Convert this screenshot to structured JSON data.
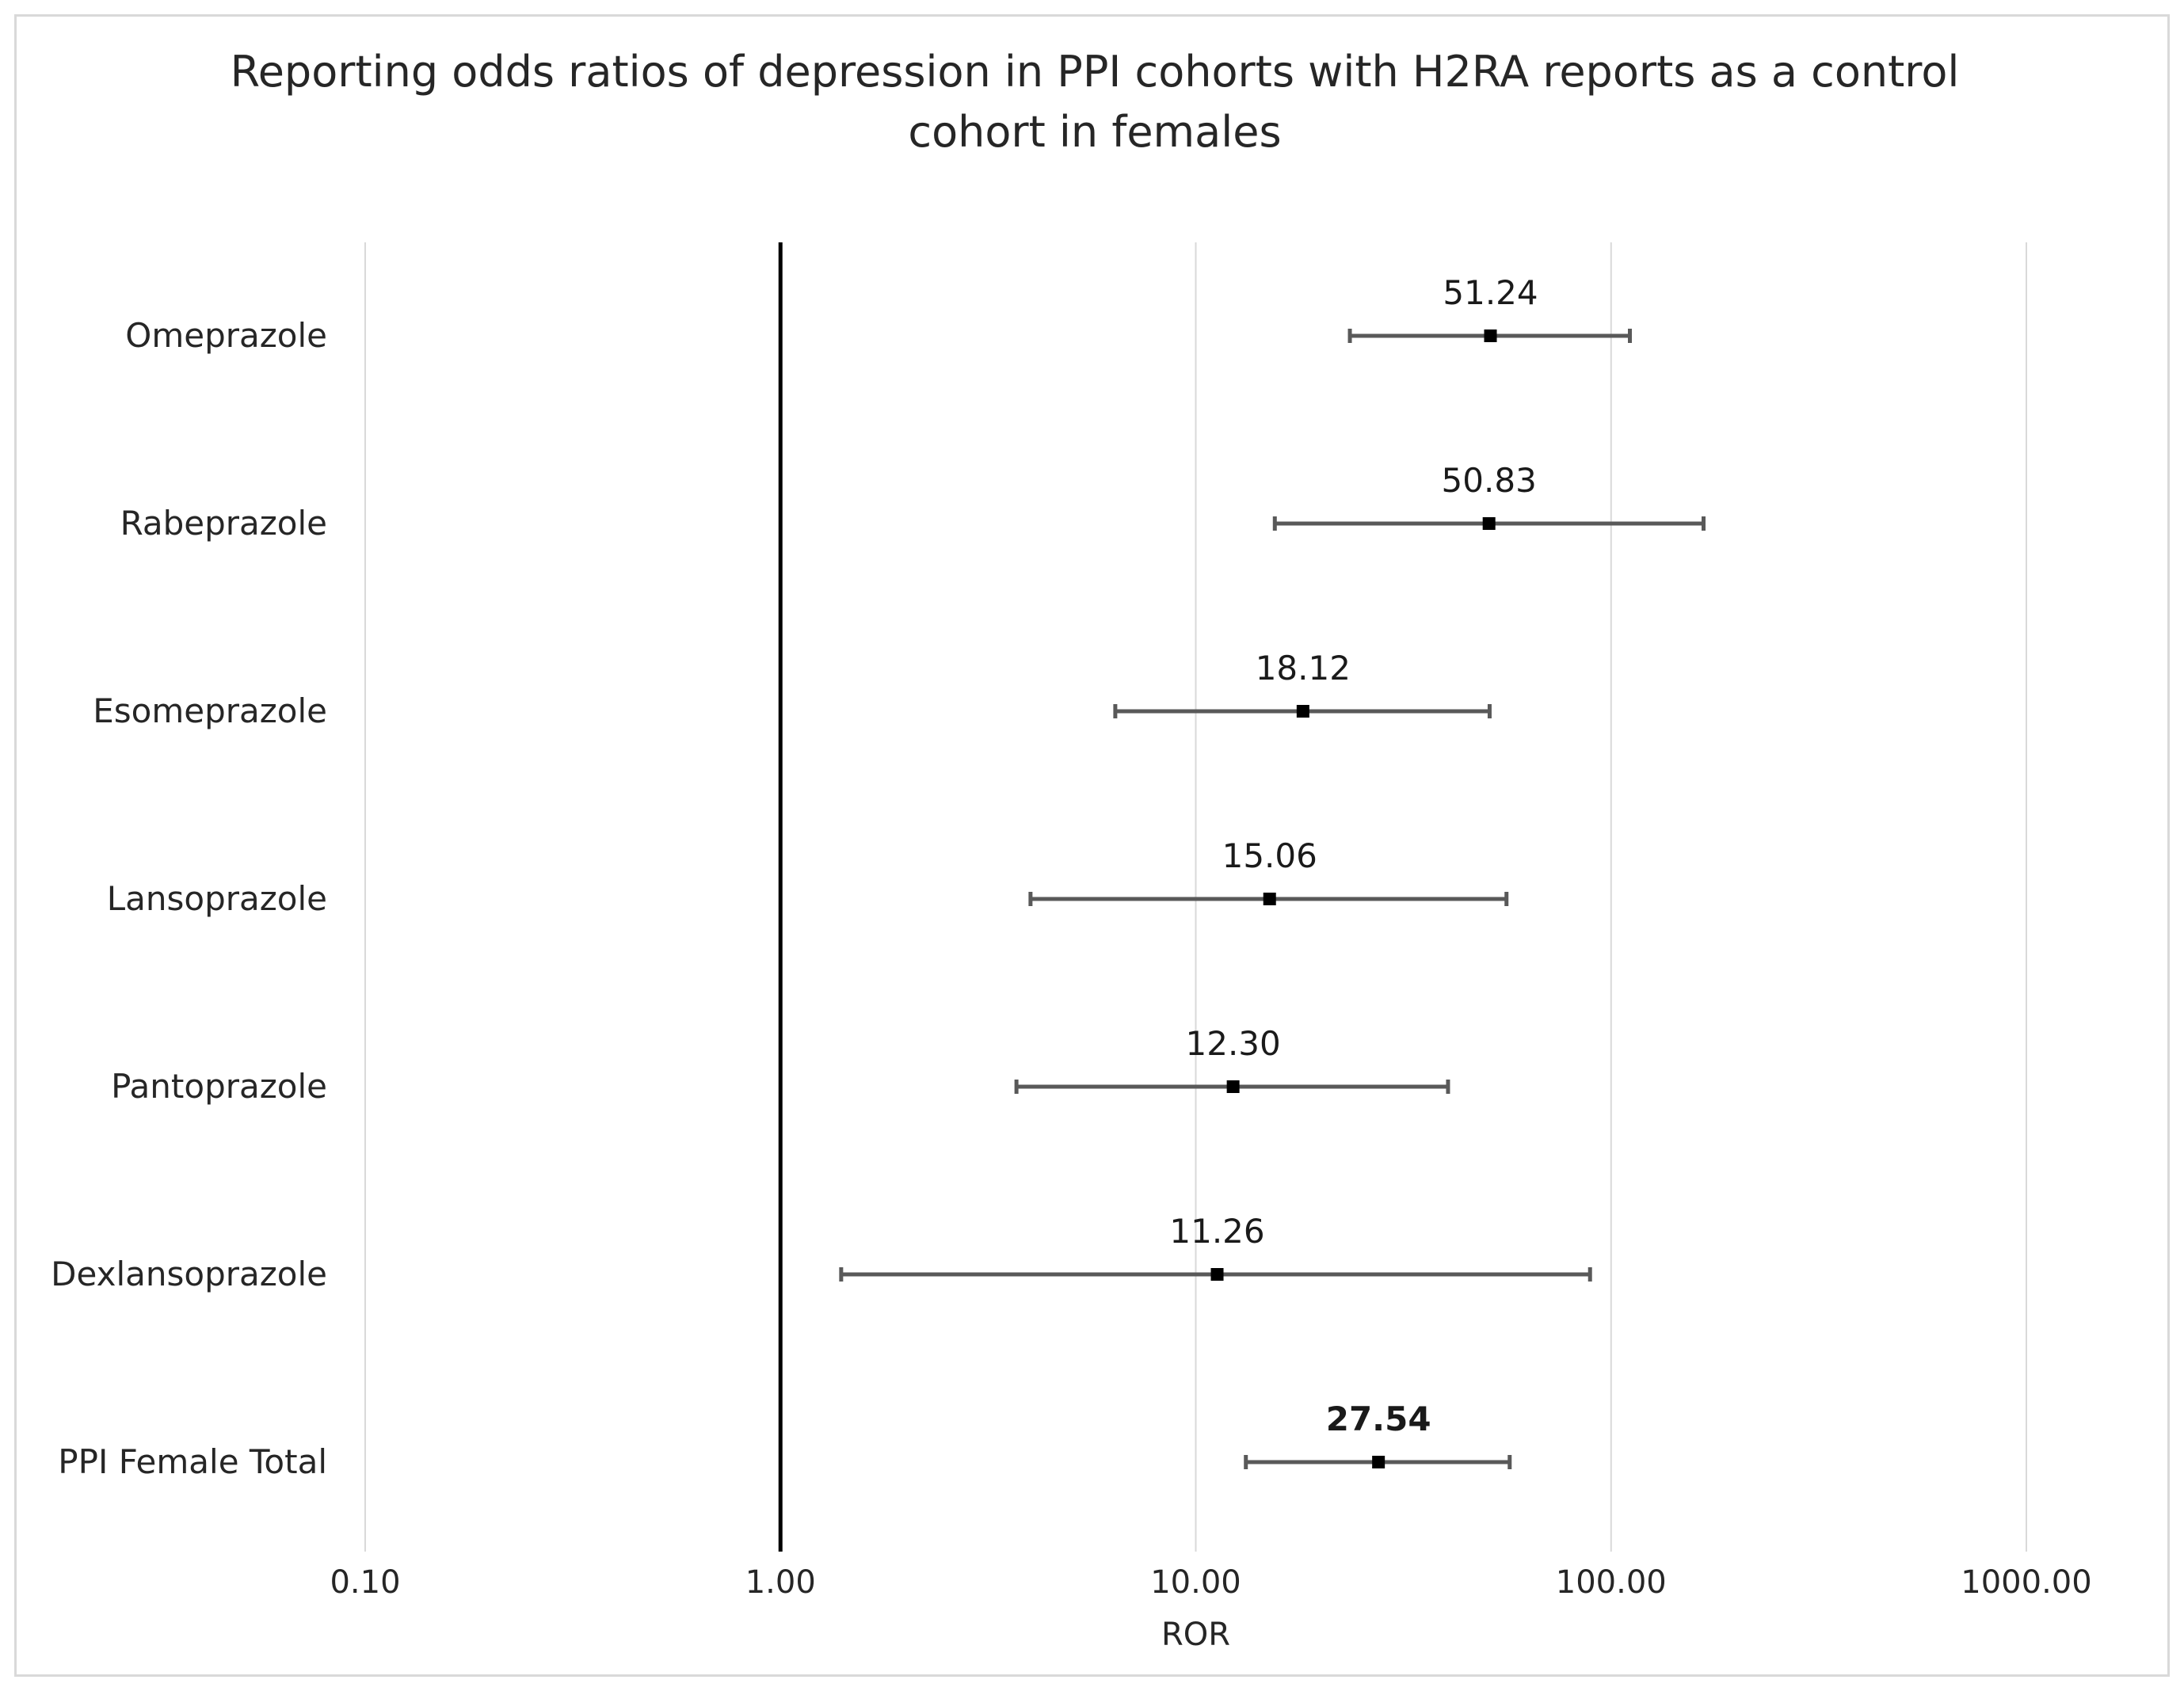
{
  "chart_data": {
    "type": "scatter",
    "title_lines": [
      "Reporting odds ratios of depression in PPI cohorts with H2RA reports as a control",
      "cohort in females"
    ],
    "xlabel": "ROR",
    "x_scale": "log",
    "xlim": [
      0.1,
      1000
    ],
    "x_ticks": [
      0.1,
      1,
      10,
      100,
      1000
    ],
    "x_tick_labels": [
      "0.10",
      "1.00",
      "10.00",
      "100.00",
      "1000.00"
    ],
    "grid": true,
    "reference_line": 1,
    "series": [
      {
        "points": [
          {
            "category": "Omeprazole",
            "value": 51.24,
            "ci_low": 23.5,
            "ci_high": 111,
            "label": "51.24",
            "bold": false
          },
          {
            "category": "Rabeprazole",
            "value": 50.83,
            "ci_low": 15.5,
            "ci_high": 167,
            "label": "50.83",
            "bold": false
          },
          {
            "category": "Esomeprazole",
            "value": 18.12,
            "ci_low": 6.4,
            "ci_high": 51,
            "label": "18.12",
            "bold": false
          },
          {
            "category": "Lansoprazole",
            "value": 15.06,
            "ci_low": 4.0,
            "ci_high": 56,
            "label": "15.06",
            "bold": false
          },
          {
            "category": "Pantoprazole",
            "value": 12.3,
            "ci_low": 3.7,
            "ci_high": 40.5,
            "label": "12.30",
            "bold": false
          },
          {
            "category": "Dexlansoprazole",
            "value": 11.26,
            "ci_low": 1.4,
            "ci_high": 89,
            "label": "11.26",
            "bold": false
          },
          {
            "category": "PPI Female Total",
            "value": 27.54,
            "ci_low": 13.2,
            "ci_high": 57,
            "label": "27.54",
            "bold": true
          }
        ]
      }
    ],
    "colors": {
      "marker": "#000000",
      "error_bar": "#595959",
      "grid": "#d9d9d9",
      "reference_line": "#000000",
      "text": "#262626"
    }
  }
}
